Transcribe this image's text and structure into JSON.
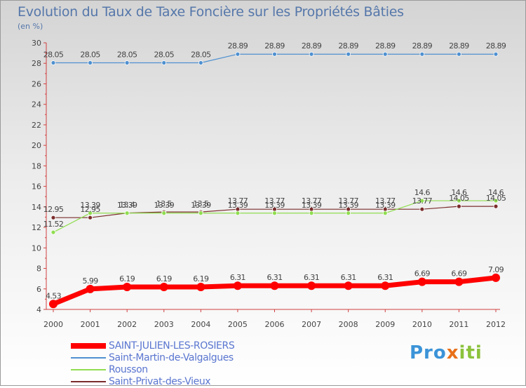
{
  "title": "Evolution du Taux de Taxe Foncière sur les Propriétés Bâties",
  "unit": "(en %)",
  "logo": {
    "part1": "Pro",
    "x": "x",
    "part2": "iti"
  },
  "colors": {
    "series0": "#ff0000",
    "series1": "#4f90d0",
    "series2": "#90dd50",
    "series3": "#7b2c2c"
  },
  "chart_data": {
    "type": "line",
    "x": [
      "2000",
      "2001",
      "2002",
      "2003",
      "2004",
      "2005",
      "2006",
      "2007",
      "2008",
      "2009",
      "2010",
      "2011",
      "2012"
    ],
    "ylim": [
      4,
      30
    ],
    "yticks": [
      4,
      6,
      8,
      10,
      12,
      14,
      16,
      18,
      20,
      22,
      24,
      26,
      28,
      30
    ],
    "grid": false,
    "legend_position": "bottom-left",
    "series": [
      {
        "name": "SAINT-JULIEN-LES-ROSIERS",
        "values": [
          4.53,
          5.99,
          6.19,
          6.19,
          6.19,
          6.31,
          6.31,
          6.31,
          6.31,
          6.31,
          6.69,
          6.69,
          7.09
        ],
        "labels": [
          "4.53",
          "5.99",
          "6.19",
          "6.19",
          "6.19",
          "6.31",
          "6.31",
          "6.31",
          "6.31",
          "6.31",
          "6.69",
          "6.69",
          "7.09"
        ]
      },
      {
        "name": "Saint-Martin-de-Valgalgues",
        "values": [
          28.05,
          28.05,
          28.05,
          28.05,
          28.05,
          28.89,
          28.89,
          28.89,
          28.89,
          28.89,
          28.89,
          28.89,
          28.89
        ],
        "labels": [
          "28.05",
          "28.05",
          "28.05",
          "28.05",
          "28.05",
          "28.89",
          "28.89",
          "28.89",
          "28.89",
          "28.89",
          "28.89",
          "28.89",
          "28.89"
        ]
      },
      {
        "name": "Rousson",
        "values": [
          11.52,
          13.39,
          13.39,
          13.39,
          13.39,
          13.39,
          13.39,
          13.39,
          13.39,
          13.39,
          14.6,
          14.6,
          14.6
        ],
        "labels": [
          "11.52",
          "13.39",
          "13.39",
          "13.39",
          "13.39",
          "13.39",
          "13.39",
          "13.39",
          "13.39",
          "13.39",
          "14.6",
          "14.6",
          "14.6"
        ]
      },
      {
        "name": "Saint-Privat-des-Vieux",
        "values": [
          12.95,
          12.95,
          13.4,
          13.5,
          13.5,
          13.77,
          13.77,
          13.77,
          13.77,
          13.77,
          13.77,
          14.05,
          14.05
        ],
        "labels": [
          "12.95",
          "12.95",
          "13.4",
          "13.5",
          "13.5",
          "13.77",
          "13.77",
          "13.77",
          "13.77",
          "13.77",
          "13.77",
          "14.05",
          "14.05"
        ]
      }
    ]
  }
}
